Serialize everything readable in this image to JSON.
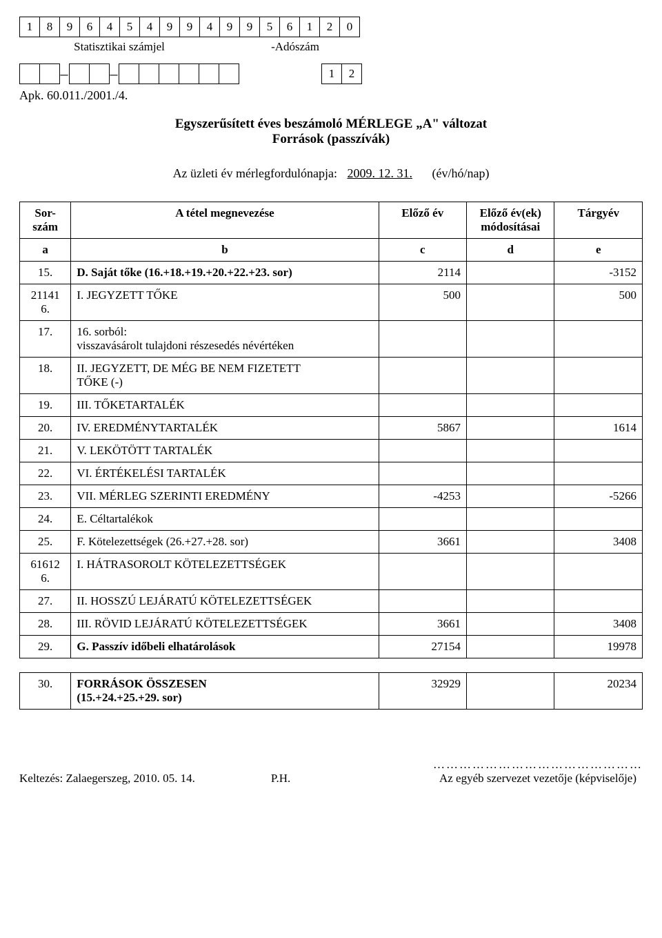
{
  "header": {
    "stat_digits": [
      "1",
      "8",
      "9",
      "6",
      "4",
      "5",
      "4",
      "9",
      "9",
      "4",
      "9",
      "9",
      "5",
      "6",
      "1",
      "2",
      "0"
    ],
    "stat_label": "Statisztikai számjel",
    "tax_label": "-Adószám",
    "row2_a_count": 2,
    "row2_b_count": 2,
    "row2_c_count": 6,
    "row2_right": [
      "1",
      "2"
    ],
    "apk": "Apk. 60.011./2001./4."
  },
  "title": {
    "line1": "Egyszerűsített éves beszámoló MÉRLEGE „A\" változat",
    "line2": "Források (passzívák)"
  },
  "fiscal": {
    "prefix": "Az üzleti év mérlegfordulónapja:",
    "date": "2009. 12. 31.",
    "suffix": "(év/hó/nap)"
  },
  "table": {
    "head": {
      "sor": "Sor-\nszám",
      "b": "A tétel megnevezése",
      "c": "Előző év",
      "d": "Előző év(ek)\nmódosításai",
      "e": "Tárgyév",
      "a2": "a",
      "b2": "b",
      "c2": "c",
      "d2": "d",
      "e2": "e"
    },
    "rows": [
      {
        "sor": "15.",
        "name": "D. Saját tőke (16.+18.+19.+20.+22.+23. sor)",
        "c": "2114",
        "d": "",
        "e": "-3152",
        "bold": true
      },
      {
        "sor": "21141\n6.",
        "name": "I. JEGYZETT TŐKE",
        "c": "500",
        "d": "",
        "e": "500"
      },
      {
        "sor": "17.",
        "name": "    16. sorból:\nvisszavásárolt tulajdoni részesedés névértéken",
        "c": "",
        "d": "",
        "e": ""
      },
      {
        "sor": "18.",
        "name": "II. JEGYZETT, DE MÉG BE NEM FIZETETT\nTŐKE (-)",
        "c": "",
        "d": "",
        "e": ""
      },
      {
        "sor": "19.",
        "name": "III. TŐKETARTALÉK",
        "c": "",
        "d": "",
        "e": ""
      },
      {
        "sor": "20.",
        "name": "IV. EREDMÉNYTARTALÉK",
        "c": "5867",
        "d": "",
        "e": "1614"
      },
      {
        "sor": "21.",
        "name": "V. LEKÖTÖTT TARTALÉK",
        "c": "",
        "d": "",
        "e": ""
      },
      {
        "sor": "22.",
        "name": "VI. ÉRTÉKELÉSI TARTALÉK",
        "c": "",
        "d": "",
        "e": ""
      },
      {
        "sor": "23.",
        "name": "VII. MÉRLEG SZERINTI EREDMÉNY",
        "c": "-4253",
        "d": "",
        "e": "-5266"
      },
      {
        "sor": "24.",
        "name": "E. Céltartalékok",
        "c": "",
        "d": "",
        "e": ""
      },
      {
        "sor": "25.",
        "name": "F. Kötelezettségek (26.+27.+28. sor)",
        "c": "3661",
        "d": "",
        "e": "3408"
      },
      {
        "sor": "61612\n6.",
        "name": "I. HÁTRASOROLT KÖTELEZETTSÉGEK",
        "c": "",
        "d": "",
        "e": ""
      },
      {
        "sor": "27.",
        "name": "II. HOSSZÚ LEJÁRATÚ KÖTELEZETTSÉGEK",
        "c": "",
        "d": "",
        "e": ""
      },
      {
        "sor": "28.",
        "name": "III. RÖVID LEJÁRATÚ KÖTELEZETTSÉGEK",
        "c": "3661",
        "d": "",
        "e": "3408"
      },
      {
        "sor": "29.",
        "name": "G. Passzív időbeli elhatárolások",
        "c": "27154",
        "d": "",
        "e": "19978",
        "bold": true
      }
    ],
    "total": {
      "sor": "30.",
      "name": "FORRÁSOK ÖSSZESEN\n(15.+24.+25.+29. sor)",
      "c": "32929",
      "d": "",
      "e": "20234",
      "bold": true
    }
  },
  "footer": {
    "keltezes": "Keltezés: Zalaegerszeg, 2010. 05. 14.",
    "ph": "P.H.",
    "dots": "…………………………………………",
    "sig_label": "Az egyéb szervezet vezetője (képviselője)"
  },
  "style": {
    "cell_border": "#000000",
    "font": "Times New Roman",
    "font_size_body": 18
  }
}
